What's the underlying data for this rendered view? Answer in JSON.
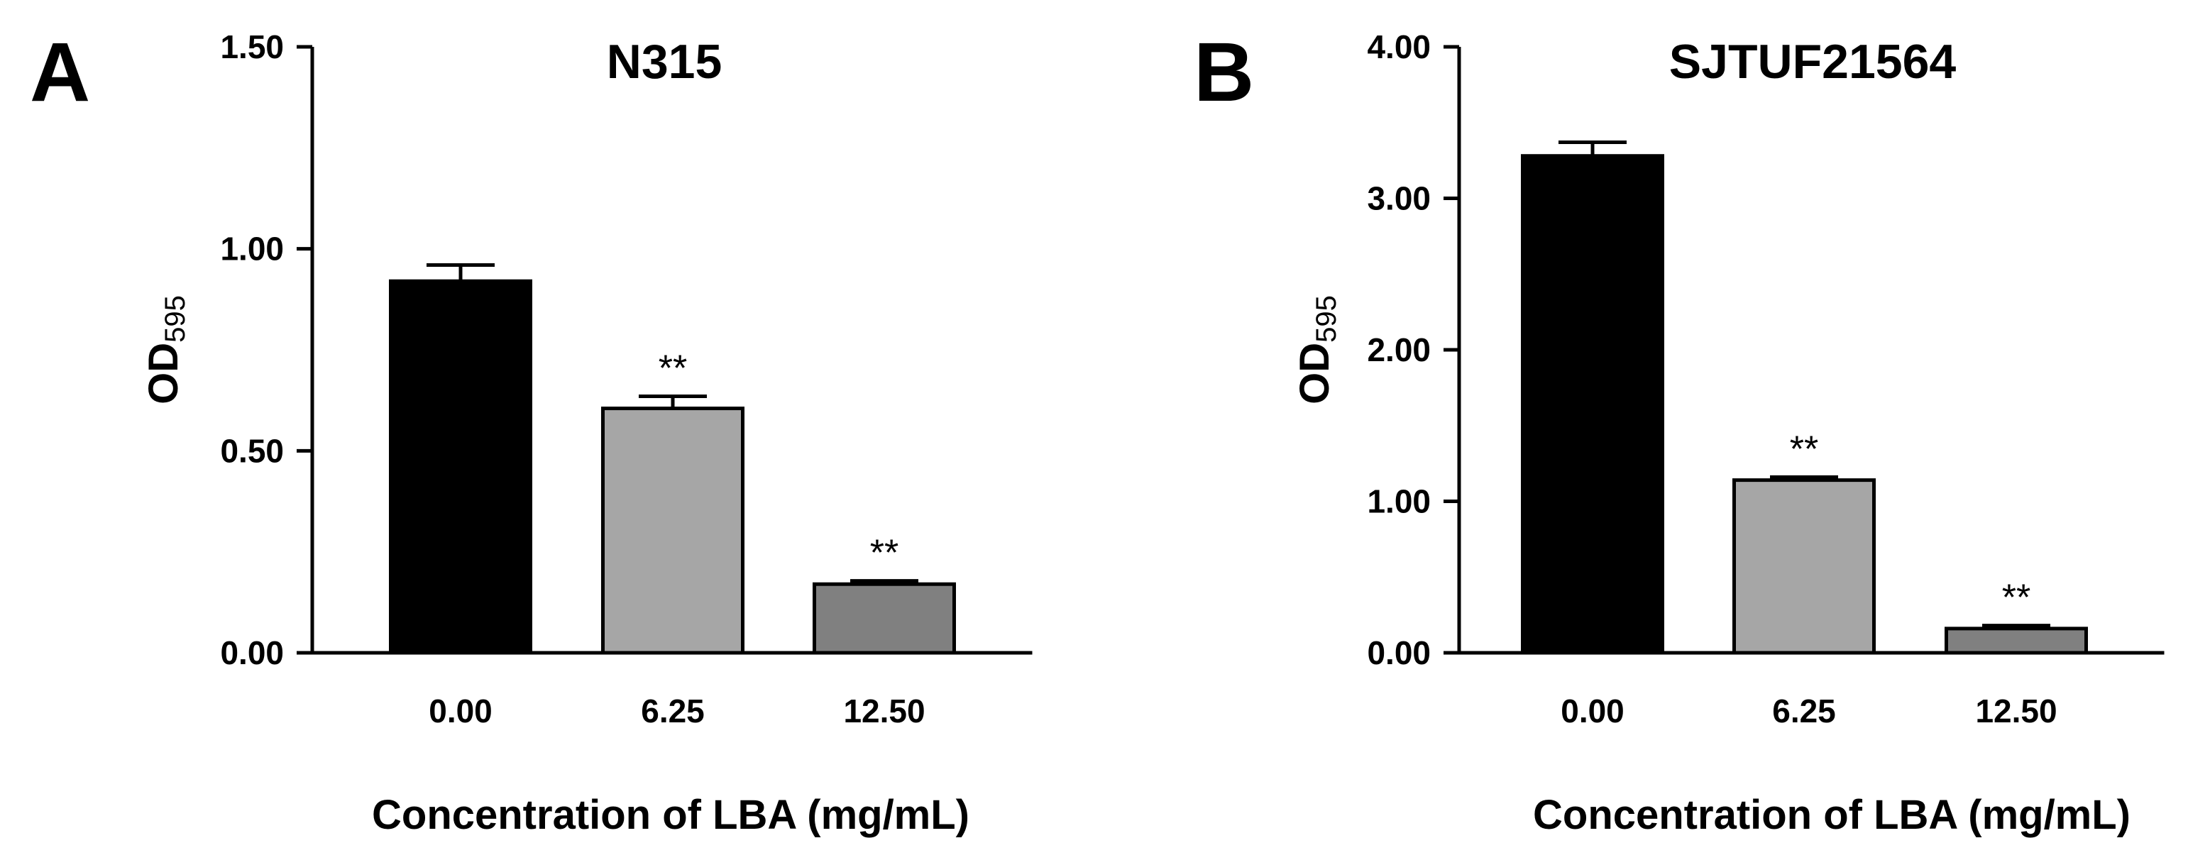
{
  "chart_data": [
    {
      "panel": "A",
      "type": "bar",
      "title": "N315",
      "ylabel_main": "OD",
      "ylabel_sub": "595",
      "xlabel": "Concentration of LBA (mg/mL)",
      "categories": [
        "0.00",
        "6.25",
        "12.50"
      ],
      "values": [
        0.92,
        0.605,
        0.17
      ],
      "errors": [
        0.04,
        0.03,
        0.008
      ],
      "annotations": [
        "",
        "**",
        "**"
      ],
      "colors": [
        "#000000",
        "#a6a6a6",
        "#808080"
      ],
      "ylim": [
        0,
        1.5
      ],
      "yticks": [
        0,
        0.5,
        1.0,
        1.5
      ],
      "ytick_labels": [
        "0.00",
        "0.50",
        "1.00",
        "1.50"
      ]
    },
    {
      "panel": "B",
      "type": "bar",
      "title": "SJTUF21564",
      "ylabel_main": "OD",
      "ylabel_sub": "595",
      "xlabel": "Concentration of LBA (mg/mL)",
      "categories": [
        "0.00",
        "6.25",
        "12.50"
      ],
      "values": [
        3.28,
        1.14,
        0.16
      ],
      "errors": [
        0.09,
        0.02,
        0.02
      ],
      "annotations": [
        "",
        "**",
        "**"
      ],
      "colors": [
        "#000000",
        "#a6a6a6",
        "#808080"
      ],
      "ylim": [
        0,
        4.0
      ],
      "yticks": [
        0,
        1,
        2,
        3,
        4
      ],
      "ytick_labels": [
        "0.00",
        "1.00",
        "2.00",
        "3.00",
        "4.00"
      ]
    }
  ]
}
